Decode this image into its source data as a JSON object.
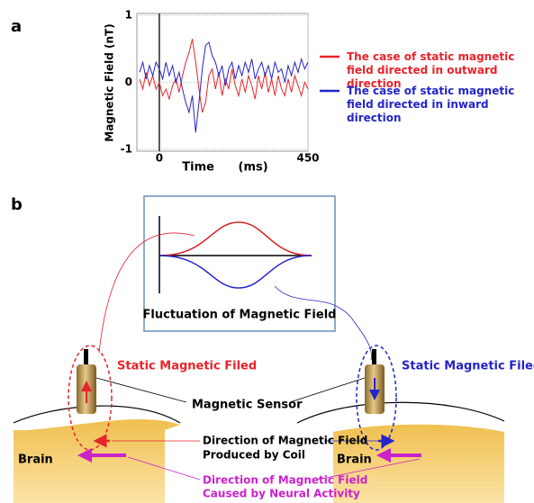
{
  "panels": [
    "a",
    "b"
  ],
  "chart_data": {
    "type": "line",
    "y_label": "Magnetic Field (nT)",
    "x_label": "Time (ms)",
    "x": [
      -60,
      -50,
      -40,
      -30,
      -20,
      -10,
      0,
      10,
      20,
      30,
      40,
      50,
      60,
      70,
      80,
      90,
      100,
      110,
      120,
      130,
      140,
      150,
      160,
      170,
      180,
      190,
      200,
      210,
      220,
      230,
      240,
      250,
      260,
      270,
      280,
      290,
      300,
      310,
      320,
      330,
      340,
      350,
      360,
      370,
      380,
      390,
      400,
      410,
      420,
      430,
      440,
      450
    ],
    "series": [
      {
        "name": "The case of static magnetic field directed in outward direction",
        "color": "#e8232a",
        "values": [
          0.05,
          -0.1,
          0.15,
          -0.05,
          0.1,
          -0.1,
          0.0,
          -0.2,
          -0.1,
          -0.25,
          -0.05,
          0.05,
          -0.15,
          0.1,
          0.3,
          0.45,
          0.65,
          0.3,
          -0.1,
          -0.45,
          -0.3,
          0.1,
          0.2,
          -0.1,
          0.15,
          -0.2,
          0.05,
          -0.1,
          0.2,
          -0.05,
          -0.2,
          0.05,
          -0.15,
          0.1,
          -0.05,
          -0.25,
          0.1,
          -0.1,
          0.15,
          -0.15,
          0.05,
          -0.2,
          0.1,
          -0.1,
          -0.2,
          0.05,
          -0.15,
          0.1,
          -0.05,
          -0.2,
          0.0,
          -0.1
        ]
      },
      {
        "name": "The case of static magnetic field directed in inward direction",
        "color": "#2424c8",
        "values": [
          0.15,
          0.3,
          0.05,
          0.25,
          0.1,
          0.3,
          0.2,
          0.05,
          0.3,
          0.1,
          0.25,
          0.0,
          0.15,
          -0.1,
          -0.3,
          -0.45,
          -0.2,
          -0.75,
          -0.3,
          0.2,
          0.55,
          0.6,
          0.4,
          0.3,
          0.1,
          0.25,
          -0.05,
          0.2,
          0.3,
          0.05,
          0.25,
          0.1,
          0.3,
          0.15,
          0.35,
          0.05,
          0.2,
          0.3,
          0.1,
          0.25,
          0.05,
          0.3,
          0.15,
          0.2,
          0.0,
          0.25,
          0.1,
          0.3,
          0.15,
          0.35,
          0.2,
          0.3
        ]
      }
    ],
    "xlim": [
      -68,
      450
    ],
    "ylim": [
      -1.03,
      1.03
    ],
    "xticks": [
      0,
      450
    ],
    "yticks": [
      -1,
      0,
      1
    ],
    "grid": true
  },
  "diagram": {
    "inset_caption": "Fluctuation of Magnetic Field",
    "left_field_label": "Static Magnetic Filed",
    "right_field_label": "Static Magnetic Filed",
    "sensor_label": "Magnetic Sensor",
    "coil_label": [
      "Direction of Magnetic Field",
      "Produced by Coil"
    ],
    "neural_label": [
      "Direction of Magnetic Field",
      "Caused by Neural Activity"
    ],
    "brain_left": "Brain",
    "brain_right": "Brain"
  }
}
